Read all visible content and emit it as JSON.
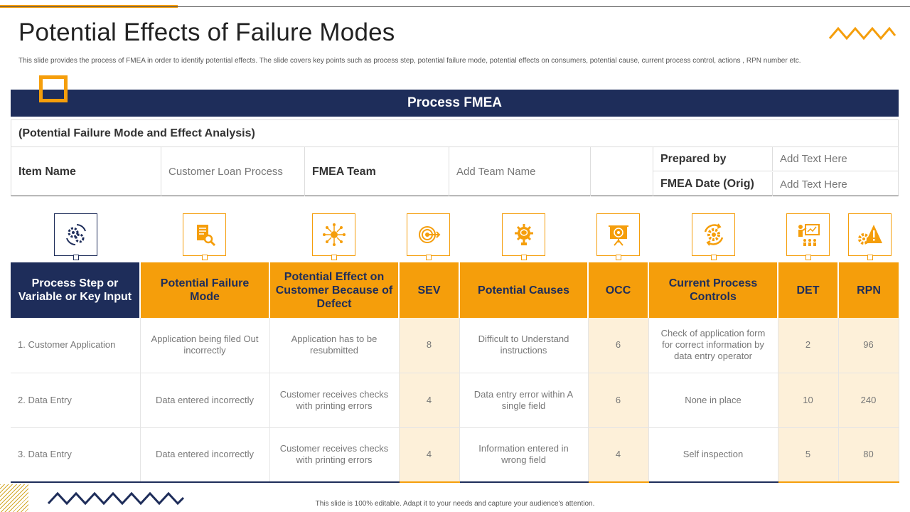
{
  "slide": {
    "title": "Potential Effects of Failure Modes",
    "subtitle": "This slide provides the process of FMEA in order to identify potential effects. The slide covers key points such as process step, potential failure mode,  potential effects on consumers, potential cause, current process control, actions , RPN  number etc.",
    "footer": "This slide is 100% editable.  Adapt it to your needs and capture your audience's attention."
  },
  "fmea_header": {
    "title": "Process FMEA",
    "subtitle": "(Potential Failure Mode and Effect Analysis)"
  },
  "info": {
    "item_name_label": "Item Name",
    "item_name_value": "Customer Loan Process",
    "team_label": "FMEA Team",
    "team_value": "Add Team Name",
    "prepared_by_label": "Prepared by",
    "prepared_by_value": "Add Text Here",
    "date_label": "FMEA Date (Orig)",
    "date_value": "Add Text Here"
  },
  "icons": [
    "gears-cycle-icon",
    "document-search-icon",
    "network-person-icon",
    "target-arrow-icon",
    "brain-gear-icon",
    "presentation-target-icon",
    "gear-refresh-icon",
    "presenter-audience-icon",
    "gear-warning-icon"
  ],
  "table": {
    "headers": [
      "Process Step or Variable or Key Input",
      "Potential Failure Mode",
      "Potential Effect on Customer Because of Defect",
      "SEV",
      "Potential Causes",
      "OCC",
      "Current Process Controls",
      "DET",
      "RPN"
    ],
    "rows": [
      [
        "1. Customer Application",
        "Application being filed Out incorrectly",
        "Application has to be resubmitted",
        "8",
        "Difficult to Understand instructions",
        "6",
        "Check of application form for correct information  by data entry operator",
        "2",
        "96"
      ],
      [
        "2. Data Entry",
        "Data entered incorrectly",
        "Customer receives checks with printing errors",
        "4",
        "Data entry error within A single field",
        "6",
        "None in place",
        "10",
        "240"
      ],
      [
        "3. Data Entry",
        "Data entered incorrectly",
        "Customer receives checks with printing errors",
        "4",
        "Information  entered in wrong field",
        "4",
        "Self inspection",
        "5",
        "80"
      ]
    ]
  },
  "colors": {
    "navy": "#1e2d5a",
    "orange": "#f59e0b",
    "shade": "#fdf0d9"
  }
}
